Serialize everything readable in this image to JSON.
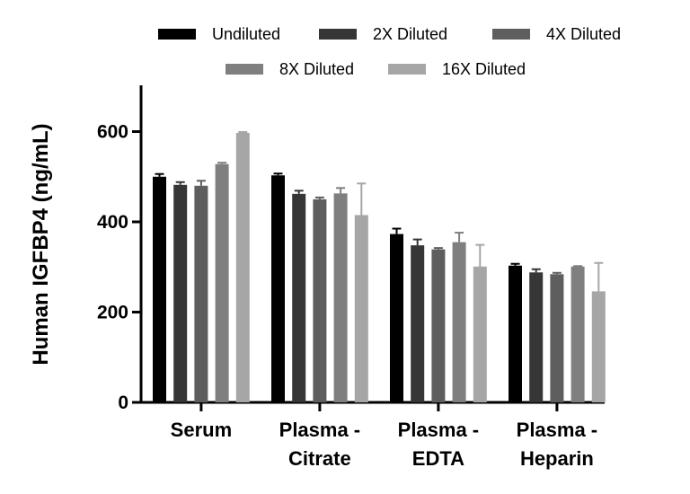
{
  "chart_data": {
    "type": "bar",
    "title": "",
    "xlabel": "",
    "ylabel": "Human IGFBP4 (ng/mL)",
    "ylim": [
      0,
      700
    ],
    "yticks": [
      0,
      200,
      400,
      600
    ],
    "grid": false,
    "legend_position": "top",
    "categories": [
      [
        "Serum"
      ],
      [
        "Plasma -",
        "Citrate"
      ],
      [
        "Plasma -",
        "EDTA"
      ],
      [
        "Plasma -",
        "Heparin"
      ]
    ],
    "series": [
      {
        "name": "Undiluted",
        "color": "#000000",
        "values": [
          500,
          503,
          373,
          303
        ],
        "errors": [
          6,
          4,
          12,
          4
        ]
      },
      {
        "name": "2X Diluted",
        "color": "#363636",
        "values": [
          482,
          462,
          348,
          288
        ],
        "errors": [
          6,
          7,
          13,
          7
        ]
      },
      {
        "name": "4X Diluted",
        "color": "#5e5e5e",
        "values": [
          480,
          450,
          339,
          284
        ],
        "errors": [
          11,
          4,
          3,
          3
        ]
      },
      {
        "name": "8X Diluted",
        "color": "#7f7f7f",
        "values": [
          528,
          463,
          355,
          301
        ],
        "errors": [
          3,
          12,
          21,
          1
        ]
      },
      {
        "name": "16X Diluted",
        "color": "#a6a6a6",
        "values": [
          597,
          415,
          301,
          246
        ],
        "errors": [
          2,
          70,
          48,
          63
        ]
      }
    ]
  }
}
